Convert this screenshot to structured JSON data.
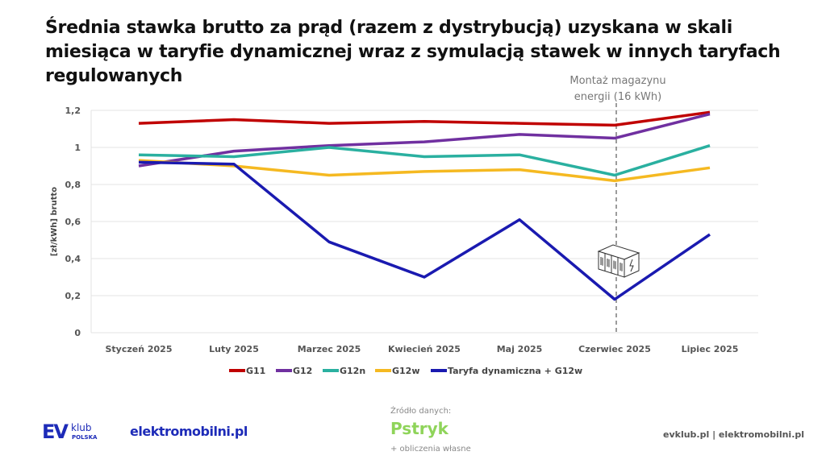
{
  "title": "Średnia stawka brutto za prąd (razem z dystrybucją) uzyskana w skali miesiąca w taryfie dynamicznej wraz z symulacją stawek w innych taryfach regulowanych",
  "chart_data": {
    "type": "line",
    "title": "Średnia stawka brutto za prąd (razem z dystrybucją) uzyskana w skali miesiąca w taryfie dynamicznej wraz z symulacją stawek w innych taryfach regulowanych",
    "ylabel": "[zł/kWh] brutto",
    "xlabel": "",
    "ylim": [
      0,
      1.2
    ],
    "yticks": [
      "0",
      "0,2",
      "0,4",
      "0,6",
      "0,8",
      "1",
      "1,2"
    ],
    "grid": true,
    "legend": "bottom",
    "categories": [
      "Styczeń 2025",
      "Luty 2025",
      "Marzec 2025",
      "Kwiecień 2025",
      "Maj 2025",
      "Czerwiec 2025",
      "Lipiec 2025"
    ],
    "series": [
      {
        "name": "G11",
        "color": "#c00000",
        "values": [
          1.13,
          1.15,
          1.13,
          1.14,
          1.13,
          1.12,
          1.19
        ]
      },
      {
        "name": "G12",
        "color": "#7030a0",
        "values": [
          0.9,
          0.98,
          1.01,
          1.03,
          1.07,
          1.05,
          1.18
        ]
      },
      {
        "name": "G12n",
        "color": "#2ab0a0",
        "values": [
          0.96,
          0.95,
          1.0,
          0.95,
          0.96,
          0.85,
          1.01
        ]
      },
      {
        "name": "G12w",
        "color": "#f5b921",
        "values": [
          0.93,
          0.9,
          0.85,
          0.87,
          0.88,
          0.82,
          0.89
        ]
      },
      {
        "name": "Taryfa dynamiczna + G12w",
        "color": "#1a1ab0",
        "values": [
          0.92,
          0.91,
          0.49,
          0.3,
          0.61,
          0.18,
          0.53
        ]
      }
    ],
    "annotation": {
      "category": "Czerwiec 2025",
      "text_line1": "Montaż magazynu",
      "text_line2": "energii (16 kWh)",
      "icon": "battery-storage-icon"
    }
  },
  "footer": {
    "evklub_logo": "EV klub POLSKA",
    "elektromobilni": "elektromobilni.pl",
    "source_label": "Źródło danych:",
    "source_logo": "Pstryk",
    "source_extra": "+ obliczenia własne",
    "websites": "evklub.pl | elektromobilni.pl"
  }
}
